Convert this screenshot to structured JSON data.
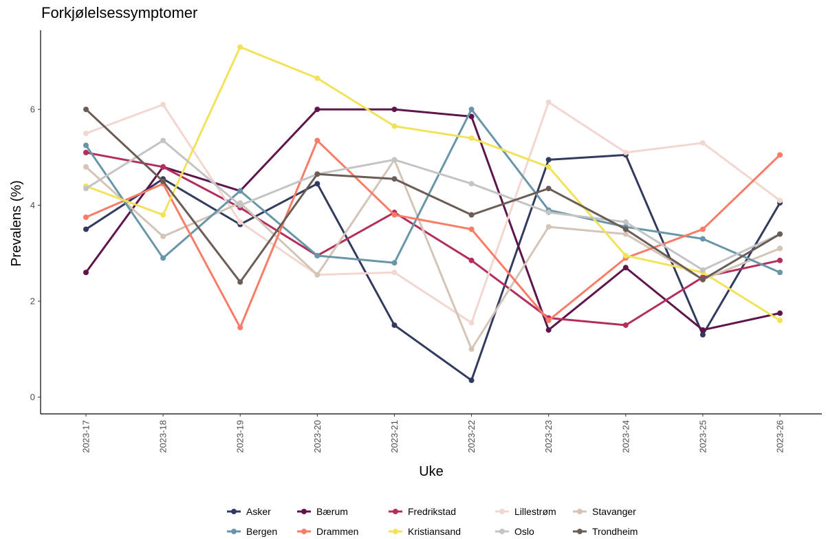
{
  "chart_data": {
    "type": "line",
    "title": "Forkjølelsessymptomer",
    "xlabel": "Uke",
    "ylabel": "Prevalens (%)",
    "categories": [
      "2023-17",
      "2023-18",
      "2023-19",
      "2023-20",
      "2023-21",
      "2023-22",
      "2023-23",
      "2023-24",
      "2023-25",
      "2023-26"
    ],
    "ylim": [
      -0.35,
      7.65
    ],
    "yticks": [
      0,
      2,
      4,
      6
    ],
    "grid": false,
    "legend_position": "bottom",
    "series": [
      {
        "name": "Asker",
        "color": "#323a5e",
        "values": [
          3.5,
          4.55,
          3.6,
          4.45,
          1.5,
          0.35,
          4.95,
          5.05,
          1.3,
          4.05
        ]
      },
      {
        "name": "Bærum",
        "color": "#5e1549",
        "values": [
          2.6,
          4.8,
          4.3,
          6.0,
          6.0,
          5.85,
          1.4,
          2.7,
          1.4,
          1.75
        ]
      },
      {
        "name": "Fredrikstad",
        "color": "#b32d5d",
        "values": [
          5.1,
          4.8,
          3.95,
          2.95,
          3.85,
          2.85,
          1.65,
          1.5,
          2.5,
          2.85
        ]
      },
      {
        "name": "Lillestrøm",
        "color": "#f2d6d0",
        "values": [
          5.5,
          6.1,
          3.65,
          2.55,
          2.6,
          1.55,
          6.15,
          5.1,
          5.3,
          4.1
        ]
      },
      {
        "name": "Stavanger",
        "color": "#d4c4b8",
        "values": [
          4.8,
          3.35,
          4.05,
          2.55,
          4.95,
          1.0,
          3.55,
          3.4,
          2.45,
          3.1
        ]
      },
      {
        "name": "Bergen",
        "color": "#6896a8",
        "values": [
          5.25,
          2.9,
          4.3,
          2.95,
          2.8,
          6.0,
          3.9,
          3.55,
          3.3,
          2.6
        ]
      },
      {
        "name": "Drammen",
        "color": "#fa7b66",
        "values": [
          3.75,
          4.45,
          1.45,
          5.35,
          3.8,
          3.5,
          1.6,
          2.9,
          3.5,
          5.05
        ]
      },
      {
        "name": "Kristiansand",
        "color": "#f2e25a",
        "values": [
          4.4,
          3.8,
          7.3,
          6.65,
          5.65,
          5.4,
          4.8,
          2.95,
          2.6,
          1.6
        ]
      },
      {
        "name": "Oslo",
        "color": "#c4c4c4",
        "values": [
          4.35,
          5.35,
          4.0,
          4.65,
          4.95,
          4.45,
          3.85,
          3.65,
          2.65,
          3.4
        ]
      },
      {
        "name": "Trondheim",
        "color": "#6b5d55",
        "values": [
          6.0,
          4.5,
          2.4,
          4.65,
          4.55,
          3.8,
          4.35,
          3.5,
          2.45,
          3.4
        ]
      }
    ]
  }
}
